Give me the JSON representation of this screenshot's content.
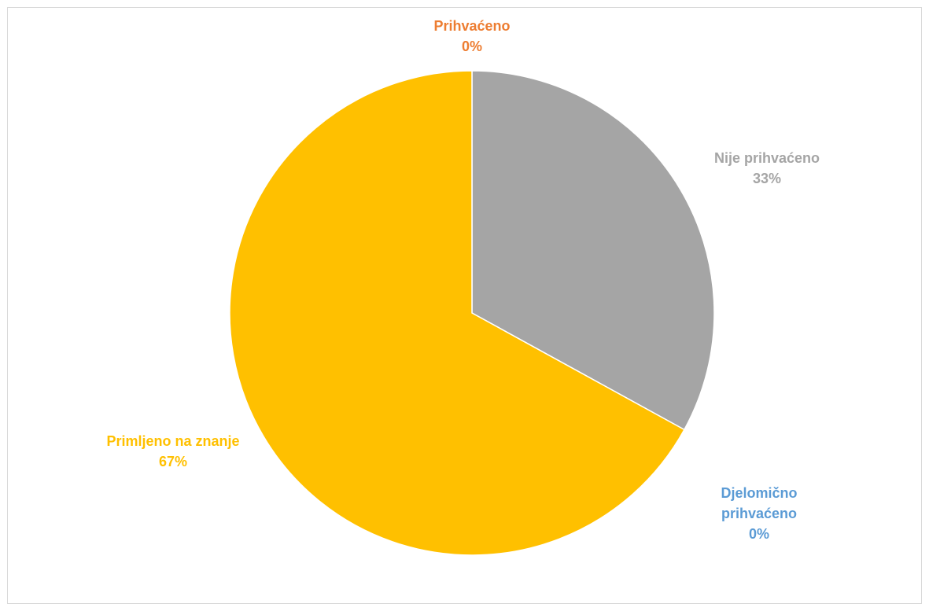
{
  "chart_data": {
    "type": "pie",
    "categories": [
      "Prihvaćeno",
      "Nije prihvaćeno",
      "Djelomično prihvaćeno",
      "Primljeno na znanje"
    ],
    "values": [
      0,
      33,
      0,
      67
    ],
    "value_labels": [
      "0%",
      "33%",
      "0%",
      "67%"
    ],
    "colors": [
      "#ED7D31",
      "#A5A5A5",
      "#5B9BD5",
      "#FFC000"
    ],
    "start_angle_deg": 0,
    "direction": "clockwise",
    "legend": "none"
  }
}
